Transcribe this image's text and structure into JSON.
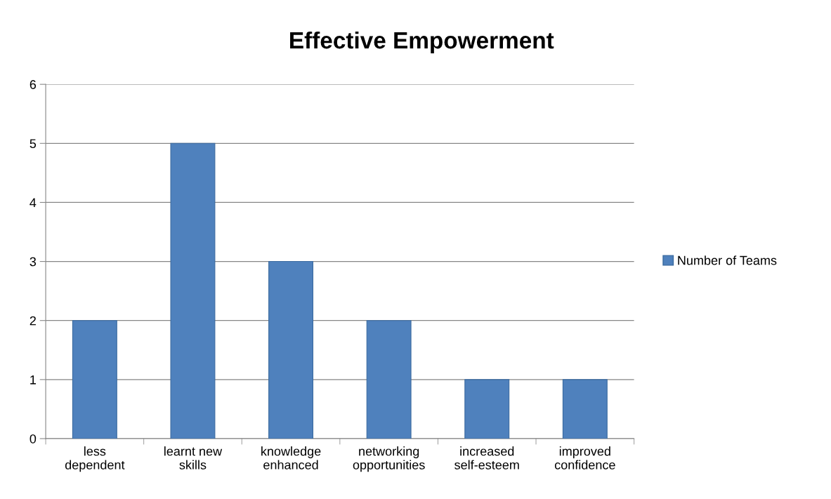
{
  "chart_data": {
    "type": "bar",
    "title": "Effective Empowerment",
    "categories": [
      "less dependent",
      "learnt new skills",
      "knowledge enhanced",
      "networking opportunities",
      "increased self-esteem",
      "improved confidence"
    ],
    "series": [
      {
        "name": "Number of Teams",
        "color": "#4f81bd",
        "values": [
          2,
          5,
          3,
          2,
          1,
          1
        ]
      }
    ],
    "ylim": [
      0,
      6
    ],
    "yticks": [
      0,
      1,
      2,
      3,
      4,
      5,
      6
    ],
    "grid": "y",
    "legend": "right"
  }
}
